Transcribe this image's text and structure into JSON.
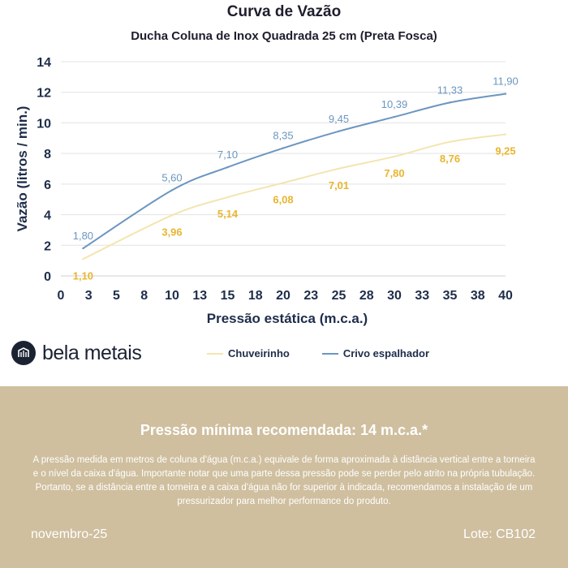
{
  "header": {
    "title": "Curva de Vazão",
    "subtitle": "Ducha Coluna de Inox Quadrada 25 cm (Preta Fosca)"
  },
  "brand": {
    "name": "bela metais",
    "icon": "bela-metais-logo-icon"
  },
  "legend": [
    {
      "label": "Chuveirinho",
      "color": "#f3e5b0"
    },
    {
      "label": "Crivo espalhador",
      "color": "#6b96c0"
    }
  ],
  "chart_data": {
    "type": "line",
    "xlabel": "Pressão estática (m.c.a.)",
    "ylabel": "Vazão (litros / min.)",
    "xlim": [
      0,
      40
    ],
    "ylim": [
      0,
      14
    ],
    "x_ticks": [
      "0",
      "3",
      "5",
      "8",
      "10",
      "13",
      "15",
      "18",
      "20",
      "23",
      "25",
      "28",
      "30",
      "33",
      "35",
      "38",
      "40"
    ],
    "y_ticks": [
      0,
      2,
      4,
      6,
      8,
      10,
      12,
      14
    ],
    "grid": true,
    "legend_position": "bottom",
    "series": [
      {
        "name": "Chuveirinho",
        "color": "#f3e5b0",
        "label_color": "#e8b52e",
        "x": [
          2,
          10,
          15,
          20,
          25,
          30,
          35,
          40
        ],
        "y": [
          1.1,
          3.96,
          5.14,
          6.08,
          7.01,
          7.8,
          8.76,
          9.25
        ],
        "labels": [
          "1,10",
          "3,96",
          "5,14",
          "6,08",
          "7,01",
          "7,80",
          "8,76",
          "9,25"
        ]
      },
      {
        "name": "Crivo espalhador",
        "color": "#6b96c0",
        "label_color": "#6b96c0",
        "x": [
          2,
          10,
          15,
          20,
          25,
          30,
          35,
          40
        ],
        "y": [
          1.8,
          5.6,
          7.1,
          8.35,
          9.45,
          10.39,
          11.33,
          11.9
        ],
        "labels": [
          "1,80",
          "5,60",
          "7,10",
          "8,35",
          "9,45",
          "10,39",
          "11,33",
          "11,90"
        ]
      }
    ]
  },
  "footer": {
    "headline": "Pressão mínima recomendada: 14 m.c.a.*",
    "note": "A pressão medida em metros de coluna d'água (m.c.a.) equivale de forma aproximada à distância vertical entre a torneira e o nível da caixa d'água. Importante notar que uma parte dessa pressão pode se perder pelo atrito na própria tubulação. Portanto, se a distância entre a torneira e a caixa d'água não for superior à indicada, recomendamos a instalação de um pressurizador para melhor performance do produto.",
    "date": "novembro-25",
    "lot": "Lote: CB102"
  }
}
